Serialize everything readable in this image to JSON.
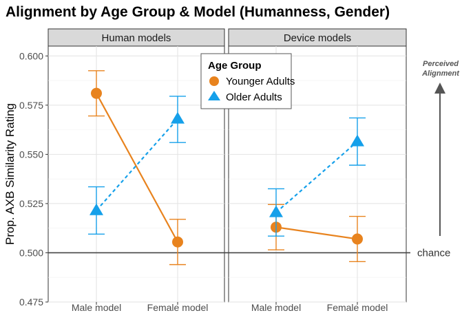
{
  "chart_data": {
    "type": "line",
    "title": "Alignment by Age Group & Model (Humanness, Gender)",
    "ylabel": "Prop. AXB Similarity Rating",
    "xlabel": "",
    "ylim": [
      0.475,
      0.605
    ],
    "yticks": [
      0.475,
      0.5,
      0.525,
      0.55,
      0.575,
      0.6
    ],
    "ytick_labels": [
      "0.475",
      "0.500",
      "0.525",
      "0.550",
      "0.575",
      "0.600"
    ],
    "categories": [
      "Male model",
      "Female model"
    ],
    "reference_line": {
      "value": 0.5,
      "label": "chance"
    },
    "side_annotation": [
      "Perceived",
      "Alignment"
    ],
    "legend": {
      "title": "Age Group",
      "position": "top-center"
    },
    "series": [
      {
        "name": "Younger Adults",
        "color": "#E8831E",
        "marker": "circle",
        "linestyle": "solid"
      },
      {
        "name": "Older Adults",
        "color": "#15A0EA",
        "marker": "triangle",
        "linestyle": "dashed"
      }
    ],
    "panels": [
      {
        "label": "Human models",
        "values": {
          "Younger Adults": [
            {
              "x": "Male model",
              "y": 0.581,
              "lo": 0.5695,
              "hi": 0.5925
            },
            {
              "x": "Female model",
              "y": 0.5055,
              "lo": 0.494,
              "hi": 0.517
            }
          ],
          "Older Adults": [
            {
              "x": "Male model",
              "y": 0.5215,
              "lo": 0.5095,
              "hi": 0.5335
            },
            {
              "x": "Female model",
              "y": 0.568,
              "lo": 0.556,
              "hi": 0.5795
            }
          ]
        }
      },
      {
        "label": "Device models",
        "values": {
          "Younger Adults": [
            {
              "x": "Male model",
              "y": 0.513,
              "lo": 0.5015,
              "hi": 0.5245
            },
            {
              "x": "Female model",
              "y": 0.507,
              "lo": 0.4955,
              "hi": 0.5185
            }
          ],
          "Older Adults": [
            {
              "x": "Male model",
              "y": 0.5205,
              "lo": 0.5085,
              "hi": 0.5325
            },
            {
              "x": "Female model",
              "y": 0.5565,
              "lo": 0.5445,
              "hi": 0.5685
            }
          ]
        }
      }
    ]
  }
}
